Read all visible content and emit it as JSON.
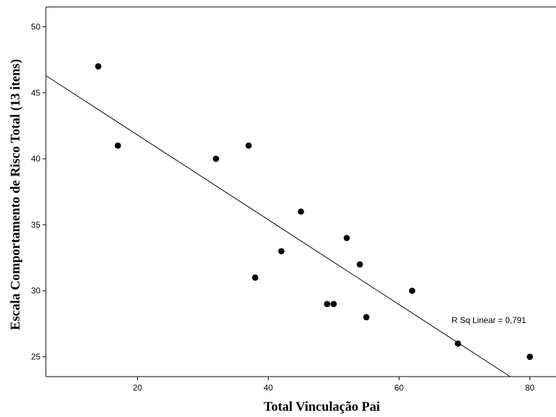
{
  "chart_data": {
    "type": "scatter",
    "xlabel": "Total Vinculação Pai",
    "ylabel": "Escala Comportamento de Risco Total (13 itens)",
    "xlim": [
      6,
      84
    ],
    "ylim": [
      23.5,
      51.5
    ],
    "x_ticks": [
      20,
      40,
      60,
      80
    ],
    "y_ticks": [
      25,
      30,
      35,
      40,
      45,
      50
    ],
    "grid": false,
    "points": [
      {
        "x": 14,
        "y": 47
      },
      {
        "x": 17,
        "y": 41
      },
      {
        "x": 32,
        "y": 40
      },
      {
        "x": 37,
        "y": 41
      },
      {
        "x": 38,
        "y": 31
      },
      {
        "x": 42,
        "y": 33
      },
      {
        "x": 45,
        "y": 36
      },
      {
        "x": 49,
        "y": 29
      },
      {
        "x": 50,
        "y": 29
      },
      {
        "x": 52,
        "y": 34
      },
      {
        "x": 54,
        "y": 32
      },
      {
        "x": 55,
        "y": 28
      },
      {
        "x": 62,
        "y": 30
      },
      {
        "x": 69,
        "y": 26
      },
      {
        "x": 80,
        "y": 25
      }
    ],
    "fit_line": {
      "type": "linear",
      "x": [
        6,
        77
      ],
      "y": [
        46.3,
        23.5
      ]
    },
    "annotation": "R Sq Linear = 0,791",
    "colors": {
      "points": "#000000",
      "line": "#000000",
      "axes": "#000000"
    }
  }
}
